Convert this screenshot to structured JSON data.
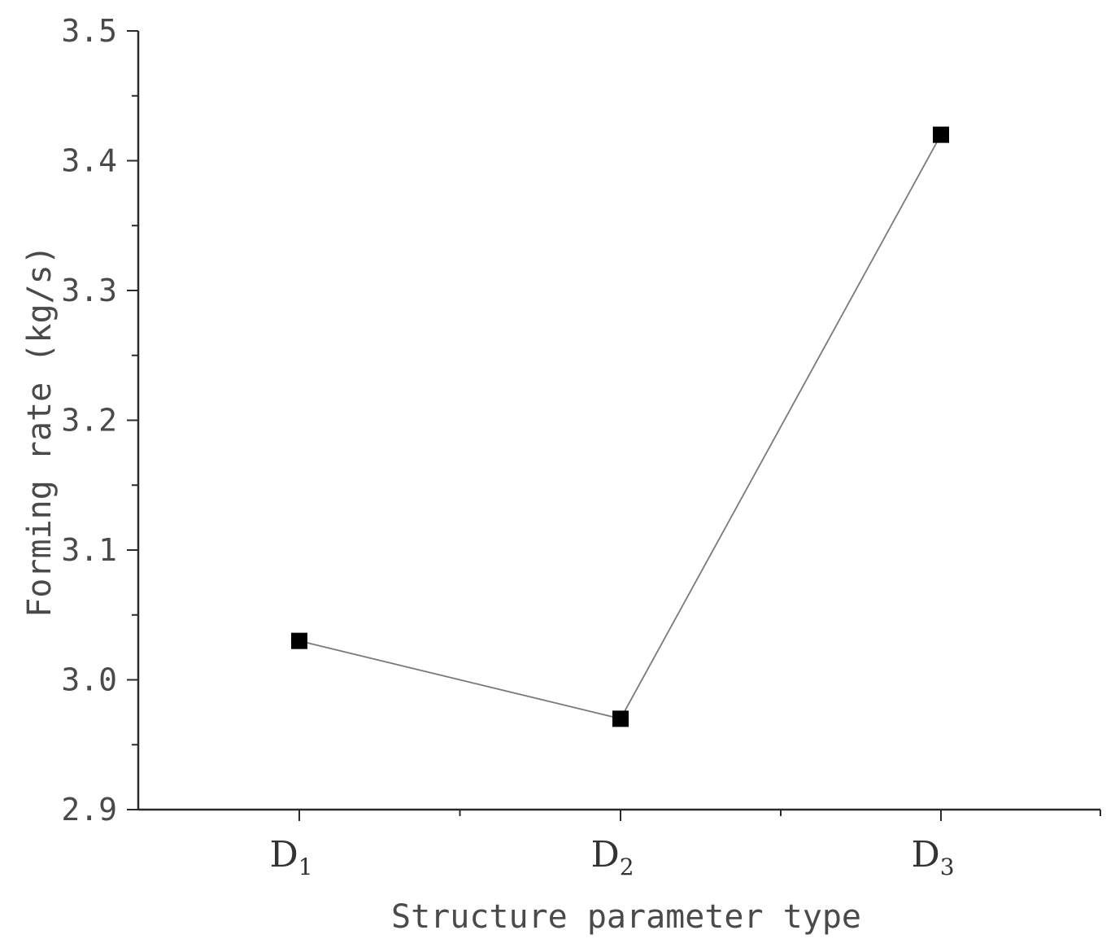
{
  "chart_data": {
    "type": "line",
    "title": "",
    "xlabel": "Structure parameter type",
    "ylabel": "Forming rate (kg/s)",
    "categories": [
      {
        "main": "D",
        "sub": "1"
      },
      {
        "main": "D",
        "sub": "2"
      },
      {
        "main": "D",
        "sub": "3"
      }
    ],
    "series": [
      {
        "values": [
          3.03,
          2.97,
          3.42
        ],
        "marker": "square",
        "color": "#000000"
      }
    ],
    "ylim": [
      2.9,
      3.5
    ],
    "yticks": [
      "2.9",
      "3.0",
      "3.1",
      "3.2",
      "3.3",
      "3.4",
      "3.5"
    ],
    "grid": false,
    "legend": "none"
  }
}
